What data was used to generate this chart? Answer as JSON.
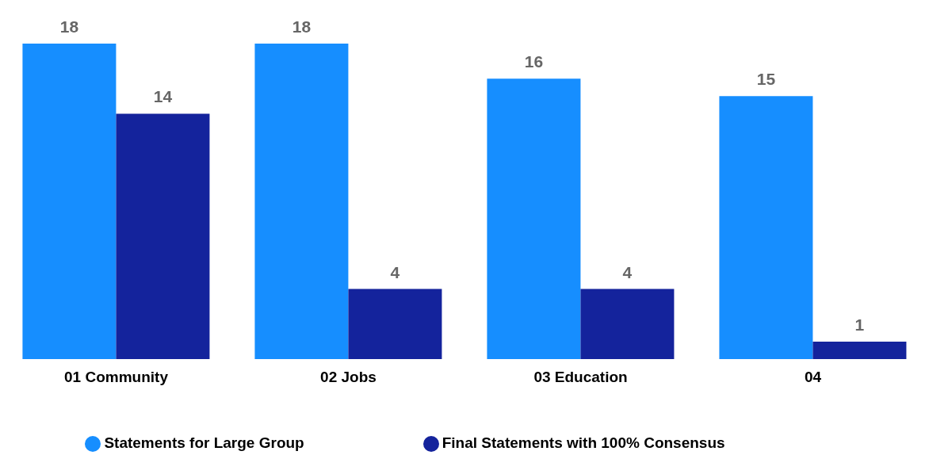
{
  "chart_data": {
    "type": "bar",
    "categories": [
      "01 Community",
      "02 Jobs",
      "03 Education",
      "04"
    ],
    "series": [
      {
        "name": "Statements for Large Group",
        "color": "#168eff",
        "values": [
          18,
          18,
          16,
          15
        ]
      },
      {
        "name": "Final Statements with 100% Consensus",
        "color": "#14239c",
        "values": [
          14,
          4,
          4,
          1
        ]
      }
    ],
    "data_labels": true,
    "legend": "bottom",
    "grid": false
  }
}
